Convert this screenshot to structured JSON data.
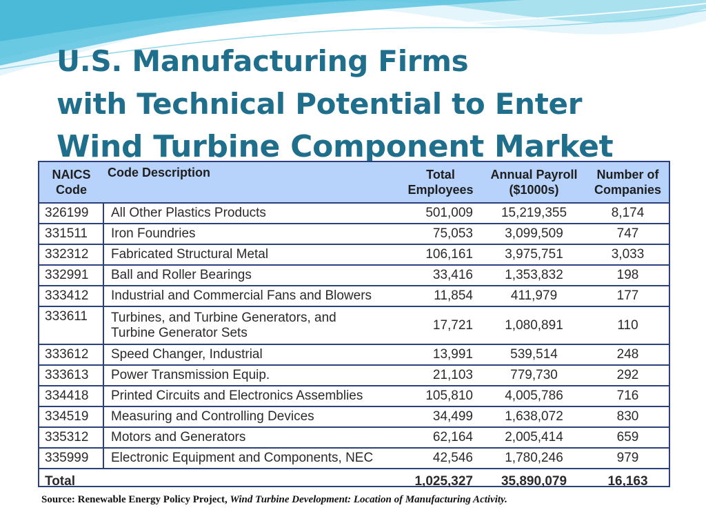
{
  "title": {
    "line1": "U.S. Manufacturing Firms",
    "line2": "with Technical Potential to Enter",
    "line3": "Wind Turbine Component Market"
  },
  "table": {
    "headers": {
      "code_line1": "NAICS",
      "code_line2": "Code",
      "description": "Code Description",
      "employees_line1": "Total",
      "employees_line2": "Employees",
      "payroll_line1": "Annual Payroll",
      "payroll_line2": "($1000s)",
      "companies_line1": "Number of",
      "companies_line2": "Companies"
    },
    "rows": [
      {
        "code": "326199",
        "description": "All Other Plastics Products",
        "employees": "501,009",
        "payroll": "15,219,355",
        "companies": "8,174"
      },
      {
        "code": "331511",
        "description": "Iron Foundries",
        "employees": "75,053",
        "payroll": "3,099,509",
        "companies": "747"
      },
      {
        "code": "332312",
        "description": "Fabricated Structural Metal",
        "employees": "106,161",
        "payroll": "3,975,751",
        "companies": "3,033"
      },
      {
        "code": "332991",
        "description": "Ball and Roller Bearings",
        "employees": "33,416",
        "payroll": "1,353,832",
        "companies": "198"
      },
      {
        "code": "333412",
        "description": "Industrial and Commercial Fans and Blowers",
        "employees": "11,854",
        "payroll": "411,979",
        "companies": "177"
      },
      {
        "code": "333611",
        "description_line1": "Turbines, and Turbine Generators, and",
        "description_line2": "Turbine Generator Sets",
        "employees": "17,721",
        "payroll": "1,080,891",
        "companies": "110"
      },
      {
        "code": "333612",
        "description": "Speed Changer, Industrial",
        "employees": "13,991",
        "payroll": "539,514",
        "companies": "248"
      },
      {
        "code": "333613",
        "description": "Power Transmission Equip.",
        "employees": "21,103",
        "payroll": "779,730",
        "companies": "292"
      },
      {
        "code": "334418",
        "description": "Printed Circuits and Electronics Assemblies",
        "employees": "105,810",
        "payroll": "4,005,786",
        "companies": "716"
      },
      {
        "code": "334519",
        "description": "Measuring and Controlling Devices",
        "employees": "34,499",
        "payroll": "1,638,072",
        "companies": "830"
      },
      {
        "code": "335312",
        "description": "Motors and Generators",
        "employees": "62,164",
        "payroll": "2,005,414",
        "companies": "659"
      },
      {
        "code": "335999",
        "description": "Electronic Equipment and Components, NEC",
        "employees": "42,546",
        "payroll": "1,780,246",
        "companies": "979"
      }
    ],
    "total": {
      "label": "Total",
      "employees": "1,025,327",
      "payroll": "35,890,079",
      "companies": "16,163"
    }
  },
  "source": {
    "prefix": "Source:  Renewable Energy Policy Project, ",
    "title": "Wind Turbine Development: Location of Manufacturing Activity."
  },
  "colors": {
    "title": "#1f6e8c",
    "header_bg": "#b7d2fb",
    "border": "#2b3f7a",
    "wave_light": "#cdeff7",
    "wave_mid": "#7fd0e6",
    "wave_dark": "#3fb4d6"
  }
}
